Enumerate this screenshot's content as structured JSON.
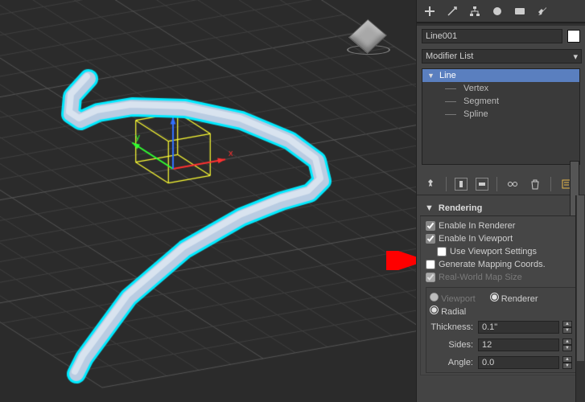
{
  "object_name": "Line001",
  "object_color": "#ffffff",
  "modifier_dropdown": "Modifier List",
  "stack": {
    "top": "Line",
    "subs": [
      "Vertex",
      "Segment",
      "Spline"
    ]
  },
  "rollout_title": "Rendering",
  "checks": {
    "enable_renderer": {
      "label": "Enable In Renderer",
      "checked": true
    },
    "enable_viewport": {
      "label": "Enable In Viewport",
      "checked": true
    },
    "use_viewport": {
      "label": "Use Viewport Settings",
      "checked": false,
      "disabled": false
    },
    "gen_mapping": {
      "label": "Generate Mapping Coords.",
      "checked": false
    },
    "realworld": {
      "label": "Real-World Map Size",
      "checked": true,
      "disabled": true
    }
  },
  "vp_renderer": {
    "viewport_label": "Viewport",
    "renderer_label": "Renderer",
    "selected": "renderer"
  },
  "radial_label": "Radial",
  "spinners": {
    "thickness": {
      "label": "Thickness:",
      "value": "0.1\""
    },
    "sides": {
      "label": "Sides:",
      "value": "12"
    },
    "angle": {
      "label": "Angle:",
      "value": "0.0"
    }
  },
  "viewport_bg": "#2b2b2b",
  "grid_color_major": "#565656",
  "grid_color_minor": "#404040",
  "spline_fill": "#b9cce2",
  "spline_outline": "#00eaff",
  "gizmo_box": "#ffff33",
  "axis": {
    "x": "#ff3030",
    "y": "#30ff30",
    "z": "#3070ff"
  },
  "arrow_color": "#ff0000"
}
